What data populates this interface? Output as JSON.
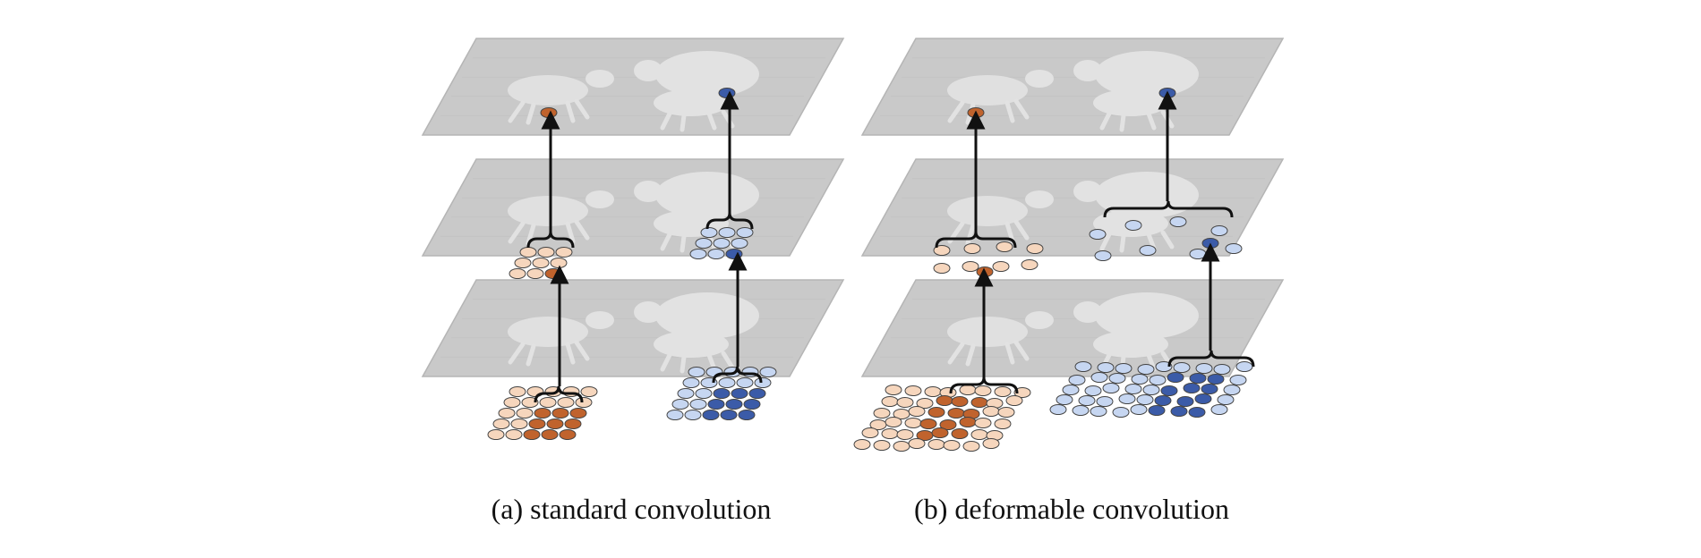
{
  "colors": {
    "background": "#ffffff",
    "plane_fill": "#c9c9c9",
    "plane_edge": "#b5b5b5",
    "animal": "#e2e2e2",
    "animal_shadow": "#bdbdbd",
    "arrow": "#111111",
    "orange_dark": "#c0632d",
    "orange_light": "#f6d6bd",
    "blue_dark": "#3b5ba8",
    "blue_light": "#c6d6f1",
    "dot_stroke": "#444444"
  },
  "panels": [
    {
      "id": "a",
      "caption": "(a) standard convolution"
    },
    {
      "id": "b",
      "caption": "(b) deformable convolution"
    }
  ]
}
